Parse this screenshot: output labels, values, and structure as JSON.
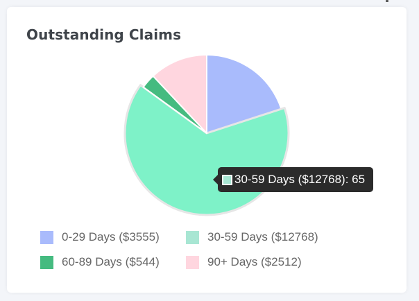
{
  "card": {
    "title": "Outstanding Claims"
  },
  "chart_data": {
    "type": "pie",
    "title": "Outstanding Claims",
    "slices": [
      {
        "label": "0-29 Days ($3555)",
        "value": 20,
        "color": "#a9bbfc"
      },
      {
        "label": "30-59 Days ($12768)",
        "value": 65,
        "color": "#7ef2c8"
      },
      {
        "label": "60-89 Days ($544)",
        "value": 3,
        "color": "#45bb80"
      },
      {
        "label": "90+ Days ($2512)",
        "value": 12,
        "color": "#ffd6df"
      }
    ],
    "legend": {
      "placement": "bottom",
      "swatch_colors": [
        "#a9bbfc",
        "#a8e6d3",
        "#45bb80",
        "#ffd6df"
      ]
    },
    "highlighted_slice": 1,
    "tooltip": {
      "text": "30-59 Days ($12768): 65",
      "swatch_color": "#a8e6d3"
    }
  }
}
